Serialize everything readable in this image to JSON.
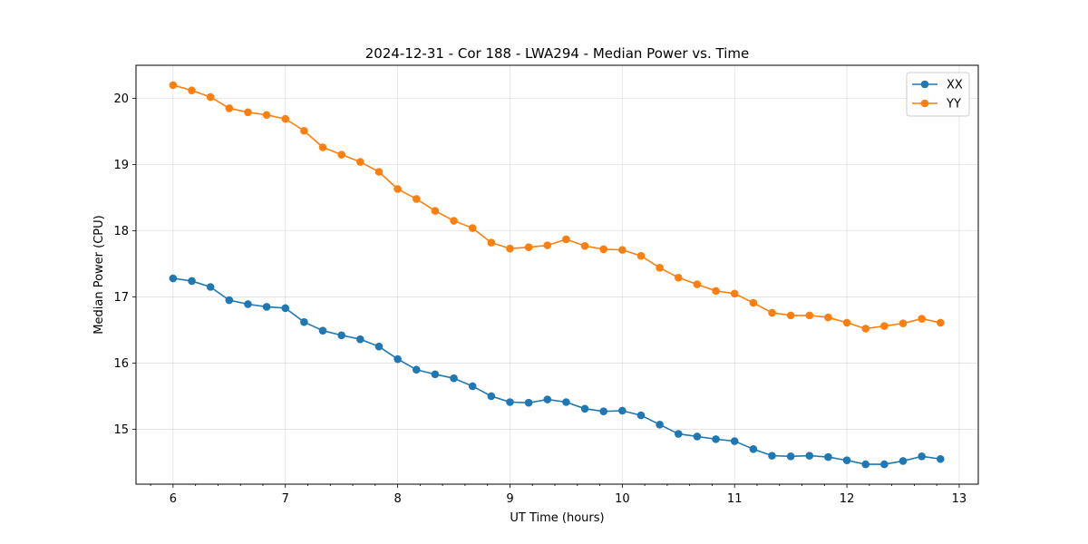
{
  "chart_data": {
    "type": "line",
    "title": "2024-12-31 - Cor 188 - LWA294 - Median Power vs. Time",
    "xlabel": "UT Time (hours)",
    "ylabel": "Median Power (CPU)",
    "xlim": [
      5.67,
      13.17
    ],
    "ylim": [
      14.17,
      20.5
    ],
    "xticks": [
      {
        "value": 6,
        "label": "6"
      },
      {
        "value": 7,
        "label": "7"
      },
      {
        "value": 8,
        "label": "8"
      },
      {
        "value": 9,
        "label": "9"
      },
      {
        "value": 10,
        "label": "10"
      },
      {
        "value": 11,
        "label": "11"
      },
      {
        "value": 12,
        "label": "12"
      },
      {
        "value": 13,
        "label": "13"
      }
    ],
    "xminor_step": 0.2,
    "yticks": [
      {
        "value": 15,
        "label": "15"
      },
      {
        "value": 16,
        "label": "16"
      },
      {
        "value": 17,
        "label": "17"
      },
      {
        "value": 18,
        "label": "18"
      },
      {
        "value": 19,
        "label": "19"
      },
      {
        "value": 20,
        "label": "20"
      }
    ],
    "grid": true,
    "legend_position": "top-right",
    "x": [
      6.0,
      6.1667,
      6.3333,
      6.5,
      6.6667,
      6.8333,
      7.0,
      7.1667,
      7.3333,
      7.5,
      7.6667,
      7.8333,
      8.0,
      8.1667,
      8.3333,
      8.5,
      8.6667,
      8.8333,
      9.0,
      9.1667,
      9.3333,
      9.5,
      9.6667,
      9.8333,
      10.0,
      10.1667,
      10.3333,
      10.5,
      10.6667,
      10.8333,
      11.0,
      11.1667,
      11.3333,
      11.5,
      11.6667,
      11.8333,
      12.0,
      12.1667,
      12.3333,
      12.5,
      12.6667,
      12.8333
    ],
    "series": [
      {
        "name": "XX",
        "color": "#1f77b4",
        "values": [
          17.28,
          17.24,
          17.15,
          16.95,
          16.89,
          16.85,
          16.83,
          16.62,
          16.49,
          16.42,
          16.36,
          16.25,
          16.06,
          15.9,
          15.83,
          15.77,
          15.65,
          15.5,
          15.41,
          15.4,
          15.45,
          15.41,
          15.31,
          15.27,
          15.28,
          15.21,
          15.07,
          14.93,
          14.89,
          14.85,
          14.82,
          14.7,
          14.6,
          14.59,
          14.6,
          14.58,
          14.53,
          14.47,
          14.47,
          14.52,
          14.59,
          14.55
        ]
      },
      {
        "name": "YY",
        "color": "#ff7f0e",
        "values": [
          20.2,
          20.12,
          20.02,
          19.85,
          19.79,
          19.75,
          19.69,
          19.51,
          19.26,
          19.15,
          19.04,
          18.89,
          18.63,
          18.48,
          18.3,
          18.15,
          18.04,
          17.82,
          17.73,
          17.75,
          17.78,
          17.87,
          17.77,
          17.72,
          17.71,
          17.62,
          17.44,
          17.29,
          17.19,
          17.09,
          17.05,
          16.91,
          16.76,
          16.72,
          16.72,
          16.69,
          16.61,
          16.52,
          16.56,
          16.6,
          16.67,
          16.61
        ]
      }
    ]
  }
}
